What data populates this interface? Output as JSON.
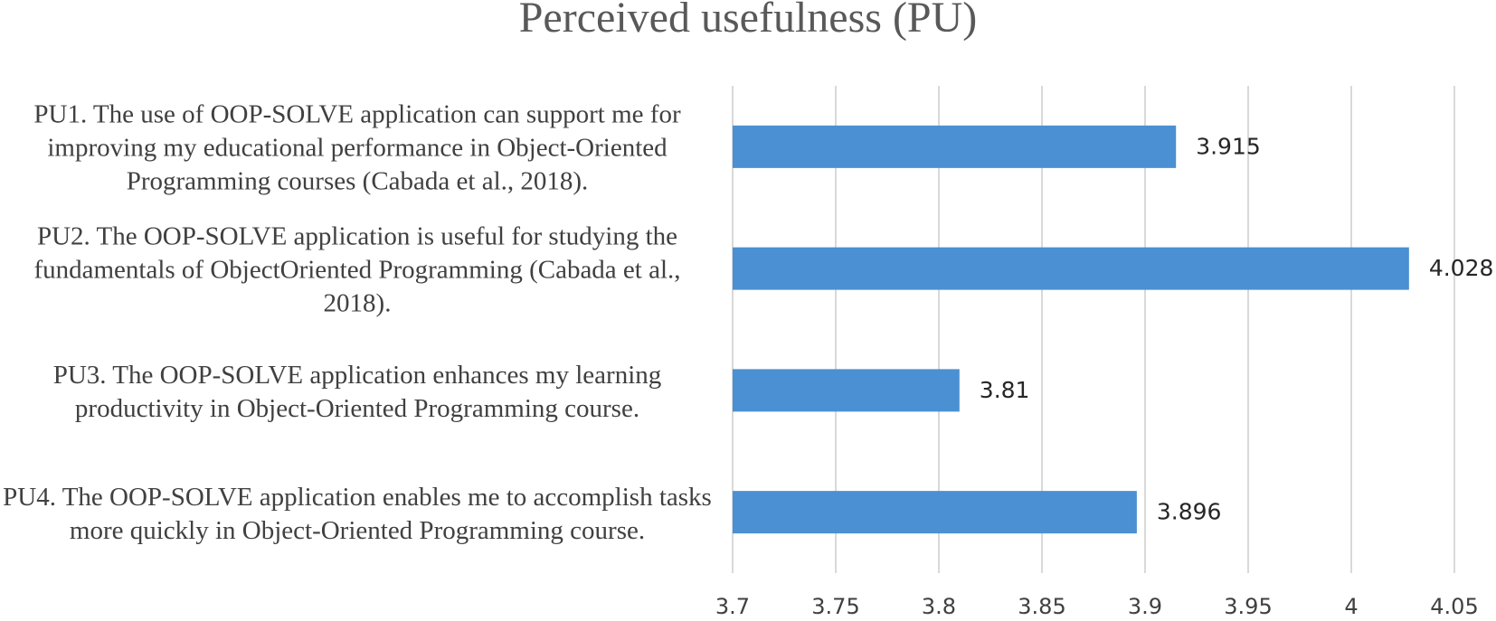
{
  "chart_data": {
    "type": "bar",
    "orientation": "horizontal",
    "title": "Perceived usefulness (PU)",
    "categories": [
      "PU1. The use of OOP-SOLVE application can support me for improving my educational performance in Object-Oriented Programming courses (Cabada et al., 2018).",
      "PU2. The OOP-SOLVE application is useful for studying the fundamentals of ObjectOriented Programming (Cabada et al., 2018).",
      "PU3. The OOP-SOLVE application enhances my learning productivity in Object-Oriented Programming course.",
      "PU4. The OOP-SOLVE application enables me to accomplish tasks more quickly in Object-Oriented Programming course."
    ],
    "values": [
      3.915,
      4.028,
      3.81,
      3.896
    ],
    "color": "#4a90d2",
    "xlim": [
      3.7,
      4.05
    ],
    "xticks": [
      3.7,
      3.75,
      3.8,
      3.85,
      3.9,
      3.95,
      4,
      4.05
    ],
    "grid": true
  }
}
